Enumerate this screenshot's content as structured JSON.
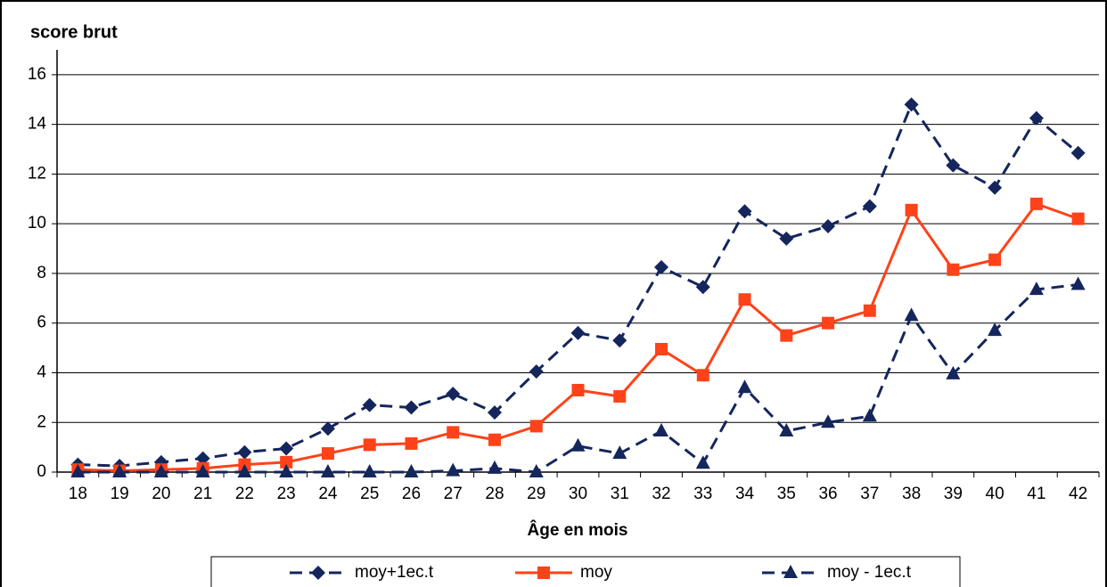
{
  "chart_data": {
    "type": "line",
    "title": "score brut",
    "x_label": "Âge en mois",
    "categories": [
      "18",
      "19",
      "20",
      "21",
      "22",
      "23",
      "24",
      "25",
      "26",
      "27",
      "28",
      "29",
      "30",
      "31",
      "32",
      "33",
      "34",
      "35",
      "36",
      "37",
      "38",
      "39",
      "40",
      "41",
      "42"
    ],
    "series": [
      {
        "name": "moy+1ec.t",
        "color": "#14265c",
        "dashed": true,
        "marker": "diamond",
        "values": [
          0.3,
          0.25,
          0.4,
          0.55,
          0.8,
          0.95,
          1.75,
          2.7,
          2.6,
          3.15,
          2.4,
          4.05,
          5.6,
          5.3,
          8.25,
          7.45,
          10.5,
          9.4,
          9.9,
          10.7,
          14.8,
          12.35,
          11.45,
          14.25,
          12.85
        ]
      },
      {
        "name": "moy",
        "color": "#ff4219",
        "dashed": false,
        "marker": "square",
        "values": [
          0.1,
          0.05,
          0.1,
          0.15,
          0.3,
          0.4,
          0.75,
          1.1,
          1.15,
          1.6,
          1.3,
          1.85,
          3.3,
          3.05,
          4.95,
          3.9,
          6.95,
          5.5,
          6.0,
          6.5,
          10.55,
          8.15,
          8.55,
          10.8,
          10.2
        ]
      },
      {
        "name": "moy - 1ec.t",
        "color": "#14265c",
        "dashed": true,
        "marker": "triangle",
        "values": [
          0,
          0,
          0,
          0,
          0,
          0,
          0,
          0,
          0,
          0.05,
          0.15,
          0,
          1.05,
          0.75,
          1.65,
          0.35,
          3.4,
          1.65,
          2.0,
          2.25,
          6.3,
          3.95,
          5.7,
          7.35,
          7.55
        ]
      }
    ],
    "ylim": [
      0,
      17
    ],
    "yticks": [
      0,
      2,
      4,
      6,
      8,
      10,
      12,
      14,
      16
    ],
    "grid": true,
    "legend": "bottom"
  }
}
